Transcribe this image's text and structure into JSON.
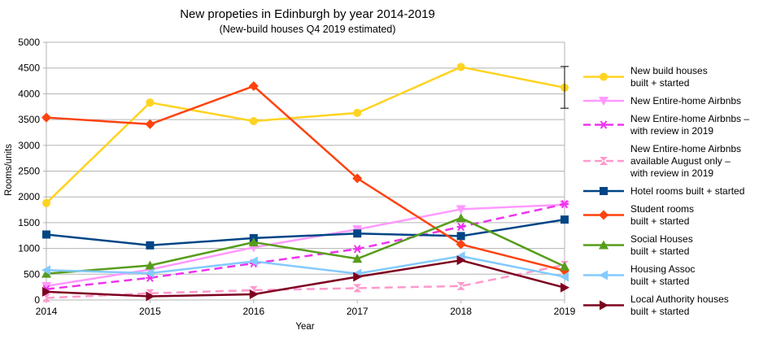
{
  "chart_data": {
    "type": "line",
    "title": "New propeties in Edinburgh by year 2014-2019",
    "subtitle": "(New-build houses Q4 2019 estimated)",
    "xlabel": "Year",
    "ylabel": "Rooms/units",
    "ylim": [
      0,
      5000
    ],
    "y_ticks": [
      "0",
      "500",
      "1000",
      "1500",
      "2000",
      "2500",
      "3000",
      "3500",
      "4000",
      "4500",
      "5000"
    ],
    "x": [
      2014,
      2015,
      2016,
      2017,
      2018,
      2019
    ],
    "x_ticks": [
      "2014",
      "2015",
      "2016",
      "2017",
      "2018",
      "2019"
    ],
    "grid": "horizontal",
    "legend_position": "right",
    "series": [
      {
        "name": "New build houses built + started",
        "legend_lines": [
          "New build houses",
          "built + started"
        ],
        "color": "#ffd320",
        "marker": "circle",
        "dash": "solid",
        "values": [
          1880,
          3830,
          3470,
          3630,
          4520,
          4120
        ],
        "error_bar": {
          "index": 5,
          "low": 3720,
          "high": 4530
        }
      },
      {
        "name": "New Entire-home Airbnbs",
        "legend_lines": [
          "New Entire-home Airbnbs"
        ],
        "color": "#ff99ff",
        "marker": "triangle-down",
        "dash": "solid",
        "values": [
          270,
          590,
          1020,
          1370,
          1760,
          1850
        ]
      },
      {
        "name": "New Entire-home Airbnbs – with review in 2019",
        "legend_lines": [
          "New Entire-home Airbnbs –",
          "with review in 2019"
        ],
        "color": "#ee33ee",
        "marker": "asterisk",
        "dash": "dashed",
        "values": [
          210,
          430,
          710,
          990,
          1420,
          1860
        ]
      },
      {
        "name": "New Entire-home Airbnbs available August only – with review in 2019",
        "legend_lines": [
          "New Entire-home Airbnbs",
          "available August only –",
          "with review in 2019"
        ],
        "color": "#ff99cc",
        "marker": "hourglass",
        "dash": "dashed",
        "values": [
          40,
          130,
          190,
          230,
          270,
          680
        ]
      },
      {
        "name": "Hotel rooms built + started",
        "legend_lines": [
          "Hotel rooms built + started"
        ],
        "color": "#004586",
        "marker": "square",
        "dash": "solid",
        "values": [
          1270,
          1060,
          1200,
          1290,
          1240,
          1560
        ]
      },
      {
        "name": "Student rooms built + started",
        "legend_lines": [
          "Student rooms",
          "built + started"
        ],
        "color": "#ff420e",
        "marker": "diamond",
        "dash": "solid",
        "values": [
          3540,
          3410,
          4150,
          2360,
          1080,
          570
        ]
      },
      {
        "name": "Social Houses built + started",
        "legend_lines": [
          "Social Houses",
          "built + started"
        ],
        "color": "#579d1c",
        "marker": "triangle-up",
        "dash": "solid",
        "values": [
          510,
          670,
          1120,
          800,
          1590,
          650
        ]
      },
      {
        "name": "Housing Assoc built + started",
        "legend_lines": [
          "Housing Assoc",
          "built + started"
        ],
        "color": "#83caff",
        "marker": "triangle-left",
        "dash": "solid",
        "values": [
          580,
          520,
          750,
          510,
          850,
          450
        ]
      },
      {
        "name": "Local Authority houses built + started",
        "legend_lines": [
          "Local Authority houses",
          "built + started"
        ],
        "color": "#7e0021",
        "marker": "triangle-right",
        "dash": "solid",
        "values": [
          160,
          70,
          110,
          450,
          770,
          240
        ]
      }
    ]
  }
}
